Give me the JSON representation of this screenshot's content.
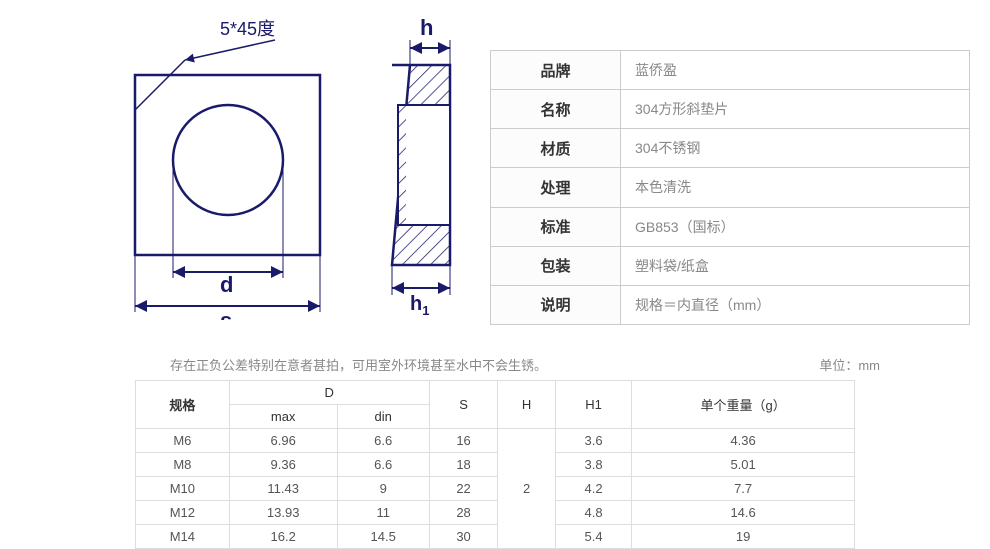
{
  "diagram": {
    "chamfer_label": "5*45度",
    "labels": {
      "h": "h",
      "h1": "h₁",
      "d": "d",
      "s": "s"
    },
    "stroke_color": "#1a1a6a",
    "stroke_width": 2,
    "hatch_color": "#1a1a6a",
    "text_color": "#1a1a6a",
    "font_size": 20
  },
  "spec_rows": [
    {
      "label": "品牌",
      "value": "蓝侨盈"
    },
    {
      "label": "名称",
      "value": "304方形斜垫片"
    },
    {
      "label": "材质",
      "value": "304不锈钢"
    },
    {
      "label": "处理",
      "value": "本色清洗"
    },
    {
      "label": "标准",
      "value": "GB853（国标）"
    },
    {
      "label": "包装",
      "value": "塑料袋/纸盒"
    },
    {
      "label": "说明",
      "value": "规格＝内直径（mm）"
    }
  ],
  "note_text": "存在正负公差特别在意者甚拍，可用室外环境甚至水中不会生锈。",
  "unit_text": "单位：mm",
  "data_table": {
    "headers": {
      "spec": "规格",
      "D": "D",
      "D_max": "max",
      "D_din": "din",
      "S": "S",
      "H": "H",
      "H1": "H1",
      "weight": "单个重量（g）"
    },
    "H_shared": "2",
    "rows": [
      {
        "spec": "M6",
        "max": "6.96",
        "din": "6.6",
        "S": "16",
        "H1": "3.6",
        "w": "4.36"
      },
      {
        "spec": "M8",
        "max": "9.36",
        "din": "6.6",
        "S": "18",
        "H1": "3.8",
        "w": "5.01"
      },
      {
        "spec": "M10",
        "max": "11.43",
        "din": "9",
        "S": "22",
        "H1": "4.2",
        "w": "7.7"
      },
      {
        "spec": "M12",
        "max": "13.93",
        "din": "11",
        "S": "28",
        "H1": "4.8",
        "w": "14.6"
      },
      {
        "spec": "M14",
        "max": "16.2",
        "din": "14.5",
        "S": "30",
        "H1": "5.4",
        "w": "19"
      }
    ]
  }
}
